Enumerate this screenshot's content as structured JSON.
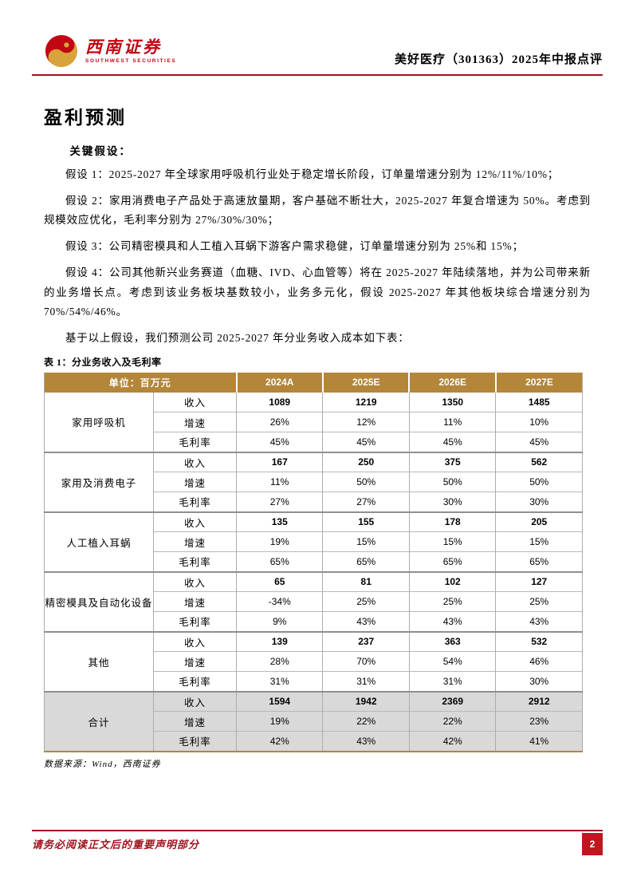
{
  "header": {
    "logo_cn": "西南证券",
    "logo_en": "SOUTHWEST SECURITIES",
    "report_title": "美好医疗（301363）2025年中报点评"
  },
  "section": {
    "title": "盈利预测",
    "key_assumptions_label": "关键假设：",
    "paragraphs": [
      "假设 1：2025-2027 年全球家用呼吸机行业处于稳定增长阶段，订单量增速分别为 12%/11%/10%；",
      "假设 2：家用消费电子产品处于高速放量期，客户基础不断壮大，2025-2027 年复合增速为 50%。考虑到规模效应优化，毛利率分别为 27%/30%/30%；",
      "假设 3：公司精密模具和人工植入耳蜗下游客户需求稳健，订单量增速分别为 25%和 15%；",
      "假设 4：公司其他新兴业务赛道（血糖、IVD、心血管等）将在 2025-2027 年陆续落地，并为公司带来新的业务增长点。考虑到该业务板块基数较小，业务多元化，假设 2025-2027 年其他板块综合增速分别为 70%/54%/46%。",
      "基于以上假设，我们预测公司 2025-2027 年分业务收入成本如下表："
    ]
  },
  "table": {
    "caption": "表 1：分业务收入及毛利率",
    "unit_header": "单位：百万元",
    "year_headers": [
      "2024A",
      "2025E",
      "2026E",
      "2027E"
    ],
    "metric_labels": [
      "收入",
      "增速",
      "毛利率"
    ],
    "groups": [
      {
        "name": "家用呼吸机",
        "highlight": false,
        "rows": [
          [
            "1089",
            "1219",
            "1350",
            "1485"
          ],
          [
            "26%",
            "12%",
            "11%",
            "10%"
          ],
          [
            "45%",
            "45%",
            "45%",
            "45%"
          ]
        ]
      },
      {
        "name": "家用及消费电子",
        "highlight": false,
        "rows": [
          [
            "167",
            "250",
            "375",
            "562"
          ],
          [
            "11%",
            "50%",
            "50%",
            "50%"
          ],
          [
            "27%",
            "27%",
            "30%",
            "30%"
          ]
        ]
      },
      {
        "name": "人工植入耳蜗",
        "highlight": false,
        "rows": [
          [
            "135",
            "155",
            "178",
            "205"
          ],
          [
            "19%",
            "15%",
            "15%",
            "15%"
          ],
          [
            "65%",
            "65%",
            "65%",
            "65%"
          ]
        ]
      },
      {
        "name": "精密模具及自动化设备",
        "highlight": false,
        "rows": [
          [
            "65",
            "81",
            "102",
            "127"
          ],
          [
            "-34%",
            "25%",
            "25%",
            "25%"
          ],
          [
            "9%",
            "43%",
            "43%",
            "43%"
          ]
        ]
      },
      {
        "name": "其他",
        "highlight": false,
        "rows": [
          [
            "139",
            "237",
            "363",
            "532"
          ],
          [
            "28%",
            "70%",
            "54%",
            "46%"
          ],
          [
            "31%",
            "31%",
            "31%",
            "30%"
          ]
        ]
      },
      {
        "name": "合计",
        "highlight": true,
        "rows": [
          [
            "1594",
            "1942",
            "2369",
            "2912"
          ],
          [
            "19%",
            "22%",
            "22%",
            "23%"
          ],
          [
            "42%",
            "43%",
            "42%",
            "41%"
          ]
        ]
      }
    ],
    "source": "数据来源：Wind，西南证券"
  },
  "footer": {
    "disclaimer": "请务必阅读正文后的重要声明部分",
    "page_number": "2"
  },
  "colors": {
    "accent_red": "#C00713",
    "rule_red": "#A0141E",
    "page_box_red": "#C1161F",
    "table_header_gold": "#B3863A",
    "total_row_gray": "#D9D9D9"
  }
}
